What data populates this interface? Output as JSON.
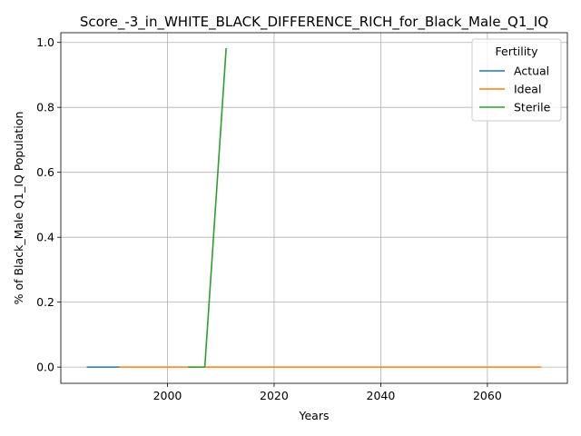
{
  "chart_data": {
    "type": "line",
    "title": "Score_-3_in_WHITE_BLACK_DIFFERENCE_RICH_for_Black_Male_Q1_IQ",
    "xlabel": "Years",
    "ylabel": "% of Black_Male Q1_IQ Population",
    "xlim": [
      1980,
      2075
    ],
    "ylim": [
      -0.05,
      1.03
    ],
    "xticks": [
      2000,
      2020,
      2040,
      2060
    ],
    "yticks": [
      0.0,
      0.2,
      0.4,
      0.6,
      0.8,
      1.0
    ],
    "xtick_labels": [
      "2000",
      "2020",
      "2040",
      "2060"
    ],
    "ytick_labels": [
      "0.0",
      "0.2",
      "0.4",
      "0.6",
      "0.8",
      "1.0"
    ],
    "grid": true,
    "legend": {
      "title": "Fertility",
      "placement": "top-right"
    },
    "series": [
      {
        "name": "Actual",
        "color": "#1f77b4",
        "x": [
          1985,
          1991
        ],
        "y": [
          0.0,
          0.0
        ]
      },
      {
        "name": "Ideal",
        "color": "#ff7f0e",
        "x": [
          1991,
          2070
        ],
        "y": [
          0.0,
          0.0
        ]
      },
      {
        "name": "Sterile",
        "color": "#2ca02c",
        "x": [
          2004,
          2007,
          2011
        ],
        "y": [
          0.0,
          0.0,
          0.98
        ]
      }
    ]
  }
}
